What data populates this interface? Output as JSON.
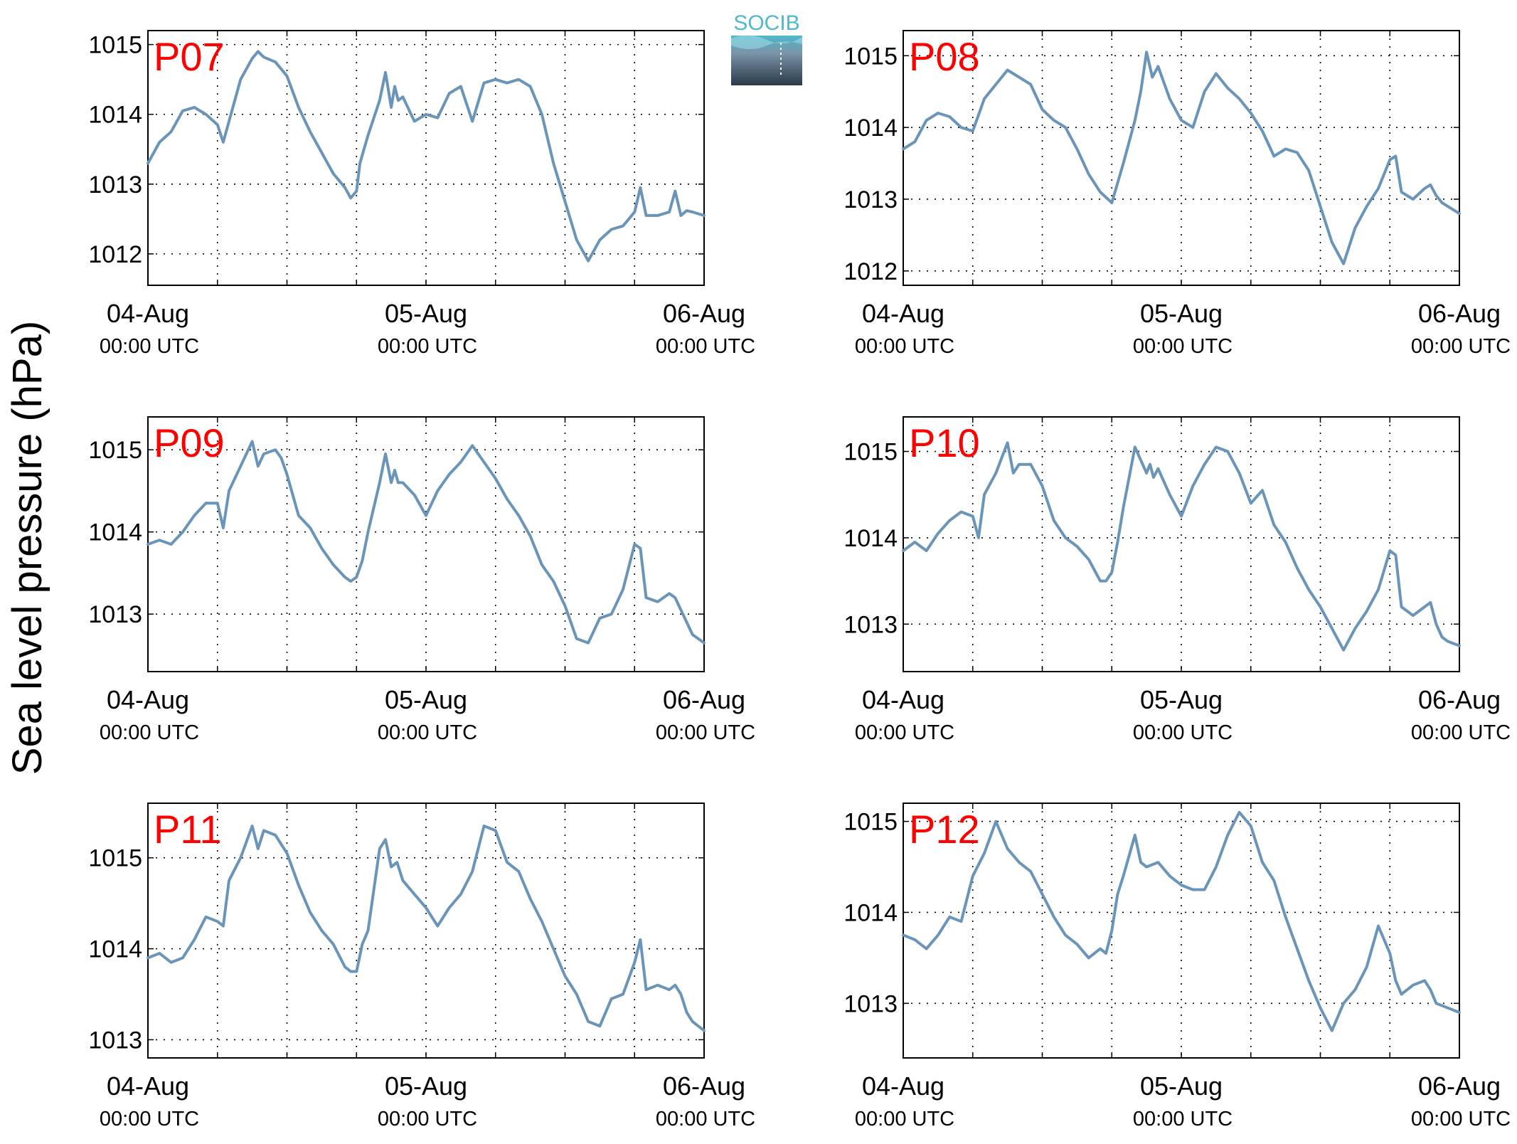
{
  "figure": {
    "ylabel": "Sea level pressure (hPa)",
    "logo_text": "SOCIB",
    "line_color": "#6a95b8",
    "label_color": "#ff0000",
    "grid": "dotted"
  },
  "chart_data": [
    {
      "type": "line",
      "title": "P07",
      "xlabel": "",
      "ylabel": "Sea level pressure (hPa)",
      "x_ticks": [
        {
          "date": "04-Aug",
          "time": "00:00 UTC"
        },
        {
          "date": "05-Aug",
          "time": "00:00 UTC"
        },
        {
          "date": "06-Aug",
          "time": "00:00 UTC"
        }
      ],
      "xlim": [
        0,
        48
      ],
      "ylim": [
        1011.55,
        1015.2
      ],
      "yticks": [
        1012,
        1013,
        1014,
        1015
      ],
      "series": [
        {
          "name": "",
          "x": [
            0,
            1,
            2,
            3,
            4,
            5,
            6,
            6.5,
            7,
            8,
            9,
            9.5,
            10,
            11,
            12,
            13,
            14,
            15,
            16,
            17,
            17.5,
            18,
            18.3,
            19,
            20,
            20.5,
            21,
            21.3,
            21.6,
            22,
            23,
            24,
            25,
            26,
            27,
            28,
            29,
            30,
            31,
            32,
            33,
            34,
            35,
            36,
            37,
            38,
            39,
            40,
            41,
            42,
            42.5,
            43,
            44,
            45,
            45.5,
            46,
            46.5,
            47,
            48
          ],
          "y": [
            1013.3,
            1013.6,
            1013.75,
            1014.05,
            1014.1,
            1014.0,
            1013.85,
            1013.6,
            1013.9,
            1014.5,
            1014.8,
            1014.9,
            1014.82,
            1014.75,
            1014.55,
            1014.1,
            1013.75,
            1013.45,
            1013.15,
            1012.95,
            1012.8,
            1012.9,
            1013.3,
            1013.7,
            1014.2,
            1014.6,
            1014.1,
            1014.4,
            1014.2,
            1014.25,
            1013.9,
            1014.0,
            1013.95,
            1014.3,
            1014.4,
            1013.9,
            1014.45,
            1014.5,
            1014.45,
            1014.5,
            1014.4,
            1014.0,
            1013.3,
            1012.75,
            1012.2,
            1011.9,
            1012.2,
            1012.35,
            1012.4,
            1012.6,
            1012.95,
            1012.55,
            1012.55,
            1012.6,
            1012.9,
            1012.55,
            1012.62,
            1012.6,
            1012.55
          ]
        }
      ]
    },
    {
      "type": "line",
      "title": "P08",
      "xlabel": "",
      "ylabel": "Sea level pressure (hPa)",
      "x_ticks": [
        {
          "date": "04-Aug",
          "time": "00:00 UTC"
        },
        {
          "date": "05-Aug",
          "time": "00:00 UTC"
        },
        {
          "date": "06-Aug",
          "time": "00:00 UTC"
        }
      ],
      "xlim": [
        0,
        48
      ],
      "ylim": [
        1011.8,
        1015.35
      ],
      "yticks": [
        1012,
        1013,
        1014,
        1015
      ],
      "series": [
        {
          "name": "",
          "x": [
            0,
            1,
            2,
            3,
            4,
            5,
            6,
            7,
            8,
            9,
            10,
            11,
            12,
            13,
            14,
            15,
            16,
            17,
            18,
            19,
            20,
            20.5,
            21,
            21.5,
            22,
            23,
            24,
            25,
            26,
            27,
            28,
            29,
            30,
            31,
            32,
            33,
            34,
            35,
            36,
            37,
            38,
            39,
            40,
            41,
            42,
            42.5,
            43,
            44,
            45,
            45.5,
            46,
            46.5,
            47,
            48
          ],
          "y": [
            1013.7,
            1013.8,
            1014.1,
            1014.2,
            1014.15,
            1014.0,
            1013.95,
            1014.4,
            1014.6,
            1014.8,
            1014.7,
            1014.6,
            1014.25,
            1014.1,
            1014.0,
            1013.7,
            1013.35,
            1013.1,
            1012.95,
            1013.5,
            1014.1,
            1014.5,
            1015.05,
            1014.7,
            1014.85,
            1014.4,
            1014.1,
            1014.0,
            1014.5,
            1014.75,
            1014.55,
            1014.4,
            1014.2,
            1013.95,
            1013.6,
            1013.7,
            1013.65,
            1013.4,
            1012.9,
            1012.4,
            1012.1,
            1012.6,
            1012.9,
            1013.15,
            1013.55,
            1013.6,
            1013.1,
            1013.0,
            1013.15,
            1013.2,
            1013.05,
            1012.95,
            1012.9,
            1012.8
          ]
        }
      ]
    },
    {
      "type": "line",
      "title": "P09",
      "xlabel": "",
      "ylabel": "Sea level pressure (hPa)",
      "x_ticks": [
        {
          "date": "04-Aug",
          "time": "00:00 UTC"
        },
        {
          "date": "05-Aug",
          "time": "00:00 UTC"
        },
        {
          "date": "06-Aug",
          "time": "00:00 UTC"
        }
      ],
      "xlim": [
        0,
        48
      ],
      "ylim": [
        1012.3,
        1015.4
      ],
      "yticks": [
        1013,
        1014,
        1015
      ],
      "series": [
        {
          "name": "",
          "x": [
            0,
            1,
            2,
            3,
            4,
            5,
            6,
            6.5,
            7,
            8,
            9,
            9.5,
            10,
            11,
            11.5,
            12,
            13,
            14,
            15,
            16,
            17,
            17.5,
            18,
            18.5,
            19,
            20,
            20.5,
            21,
            21.3,
            21.6,
            22,
            23,
            24,
            25,
            26,
            27,
            28,
            29,
            30,
            31,
            32,
            33,
            34,
            35,
            36,
            37,
            38,
            39,
            40,
            41,
            42,
            42.5,
            43,
            44,
            45,
            45.5,
            46,
            46.5,
            47,
            48
          ],
          "y": [
            1013.85,
            1013.9,
            1013.85,
            1014.0,
            1014.2,
            1014.35,
            1014.35,
            1014.05,
            1014.5,
            1014.8,
            1015.1,
            1014.8,
            1014.95,
            1015.0,
            1014.9,
            1014.7,
            1014.2,
            1014.05,
            1013.8,
            1013.6,
            1013.45,
            1013.4,
            1013.45,
            1013.65,
            1014.0,
            1014.6,
            1014.95,
            1014.6,
            1014.75,
            1014.6,
            1014.6,
            1014.45,
            1014.2,
            1014.5,
            1014.7,
            1014.85,
            1015.05,
            1014.85,
            1014.65,
            1014.4,
            1014.2,
            1013.95,
            1013.6,
            1013.4,
            1013.1,
            1012.7,
            1012.65,
            1012.95,
            1013.0,
            1013.3,
            1013.85,
            1013.8,
            1013.2,
            1013.15,
            1013.25,
            1013.2,
            1013.05,
            1012.9,
            1012.75,
            1012.65
          ]
        }
      ]
    },
    {
      "type": "line",
      "title": "P10",
      "xlabel": "",
      "ylabel": "Sea level pressure (hPa)",
      "x_ticks": [
        {
          "date": "04-Aug",
          "time": "00:00 UTC"
        },
        {
          "date": "05-Aug",
          "time": "00:00 UTC"
        },
        {
          "date": "06-Aug",
          "time": "00:00 UTC"
        }
      ],
      "xlim": [
        0,
        48
      ],
      "ylim": [
        1012.45,
        1015.4
      ],
      "yticks": [
        1013,
        1014,
        1015
      ],
      "series": [
        {
          "name": "",
          "x": [
            0,
            1,
            2,
            3,
            4,
            5,
            6,
            6.5,
            7,
            8,
            9,
            9.5,
            10,
            11,
            12,
            13,
            14,
            15,
            16,
            17,
            17.5,
            18,
            18.5,
            19,
            20,
            20.5,
            21,
            21.3,
            21.6,
            22,
            23,
            24,
            25,
            26,
            27,
            28,
            29,
            30,
            31,
            32,
            33,
            34,
            35,
            36,
            37,
            38,
            39,
            40,
            41,
            42,
            42.5,
            43,
            44,
            45,
            45.5,
            46,
            46.5,
            47,
            48
          ],
          "y": [
            1013.85,
            1013.95,
            1013.85,
            1014.05,
            1014.2,
            1014.3,
            1014.25,
            1014.0,
            1014.5,
            1014.75,
            1015.1,
            1014.75,
            1014.85,
            1014.85,
            1014.6,
            1014.2,
            1014.0,
            1013.9,
            1013.75,
            1013.5,
            1013.5,
            1013.6,
            1013.95,
            1014.35,
            1015.05,
            1014.9,
            1014.75,
            1014.85,
            1014.7,
            1014.8,
            1014.5,
            1014.25,
            1014.6,
            1014.85,
            1015.05,
            1015.0,
            1014.75,
            1014.4,
            1014.55,
            1014.15,
            1013.95,
            1013.65,
            1013.4,
            1013.2,
            1012.95,
            1012.7,
            1012.95,
            1013.15,
            1013.4,
            1013.85,
            1013.8,
            1013.2,
            1013.1,
            1013.2,
            1013.25,
            1013.0,
            1012.85,
            1012.8,
            1012.75
          ]
        }
      ]
    },
    {
      "type": "line",
      "title": "P11",
      "xlabel": "",
      "ylabel": "Sea level pressure (hPa)",
      "x_ticks": [
        {
          "date": "04-Aug",
          "time": "00:00 UTC"
        },
        {
          "date": "05-Aug",
          "time": "00:00 UTC"
        },
        {
          "date": "06-Aug",
          "time": "00:00 UTC"
        }
      ],
      "xlim": [
        0,
        48
      ],
      "ylim": [
        1012.8,
        1015.6
      ],
      "yticks": [
        1013,
        1014,
        1015
      ],
      "series": [
        {
          "name": "",
          "x": [
            0,
            1,
            2,
            3,
            4,
            5,
            6,
            6.5,
            7,
            8,
            9,
            9.5,
            10,
            11,
            12,
            13,
            14,
            15,
            16,
            17,
            17.5,
            18,
            18.5,
            19,
            20,
            20.5,
            21,
            21.5,
            22,
            23,
            24,
            25,
            26,
            27,
            28,
            29,
            30,
            31,
            32,
            33,
            34,
            35,
            36,
            37,
            38,
            39,
            40,
            41,
            42,
            42.5,
            43,
            44,
            45,
            45.5,
            46,
            46.5,
            47,
            48
          ],
          "y": [
            1013.9,
            1013.95,
            1013.85,
            1013.9,
            1014.1,
            1014.35,
            1014.3,
            1014.25,
            1014.75,
            1015.0,
            1015.35,
            1015.1,
            1015.3,
            1015.25,
            1015.05,
            1014.7,
            1014.4,
            1014.2,
            1014.05,
            1013.8,
            1013.75,
            1013.75,
            1014.05,
            1014.2,
            1015.1,
            1015.2,
            1014.9,
            1014.95,
            1014.75,
            1014.6,
            1014.45,
            1014.25,
            1014.45,
            1014.6,
            1014.85,
            1015.35,
            1015.3,
            1014.95,
            1014.85,
            1014.55,
            1014.3,
            1014.0,
            1013.7,
            1013.5,
            1013.2,
            1013.15,
            1013.45,
            1013.5,
            1013.85,
            1014.1,
            1013.55,
            1013.6,
            1013.55,
            1013.6,
            1013.5,
            1013.3,
            1013.2,
            1013.1
          ]
        }
      ]
    },
    {
      "type": "line",
      "title": "P12",
      "xlabel": "",
      "ylabel": "Sea level pressure (hPa)",
      "x_ticks": [
        {
          "date": "04-Aug",
          "time": "00:00 UTC"
        },
        {
          "date": "05-Aug",
          "time": "00:00 UTC"
        },
        {
          "date": "06-Aug",
          "time": "00:00 UTC"
        }
      ],
      "xlim": [
        0,
        48
      ],
      "ylim": [
        1012.4,
        1015.2
      ],
      "yticks": [
        1013,
        1014,
        1015
      ],
      "series": [
        {
          "name": "",
          "x": [
            0,
            1,
            2,
            3,
            4,
            5,
            6,
            7,
            8,
            9,
            10,
            11,
            12,
            13,
            14,
            15,
            16,
            17,
            17.5,
            18,
            18.5,
            19,
            20,
            20.5,
            21,
            22,
            23,
            24,
            25,
            26,
            27,
            28,
            29,
            30,
            31,
            32,
            33,
            34,
            35,
            36,
            37,
            38,
            39,
            40,
            41,
            42,
            42.5,
            43,
            44,
            45,
            45.5,
            46,
            47,
            48
          ],
          "y": [
            1013.75,
            1013.7,
            1013.6,
            1013.75,
            1013.95,
            1013.9,
            1014.4,
            1014.65,
            1015.0,
            1014.7,
            1014.55,
            1014.45,
            1014.2,
            1013.95,
            1013.75,
            1013.65,
            1013.5,
            1013.6,
            1013.55,
            1013.8,
            1014.2,
            1014.4,
            1014.85,
            1014.55,
            1014.5,
            1014.55,
            1014.4,
            1014.3,
            1014.25,
            1014.25,
            1014.5,
            1014.85,
            1015.1,
            1014.95,
            1014.55,
            1014.35,
            1013.95,
            1013.6,
            1013.25,
            1012.95,
            1012.7,
            1013.0,
            1013.15,
            1013.4,
            1013.85,
            1013.55,
            1013.25,
            1013.1,
            1013.2,
            1013.25,
            1013.15,
            1013.0,
            1012.95,
            1012.9
          ]
        }
      ]
    }
  ]
}
